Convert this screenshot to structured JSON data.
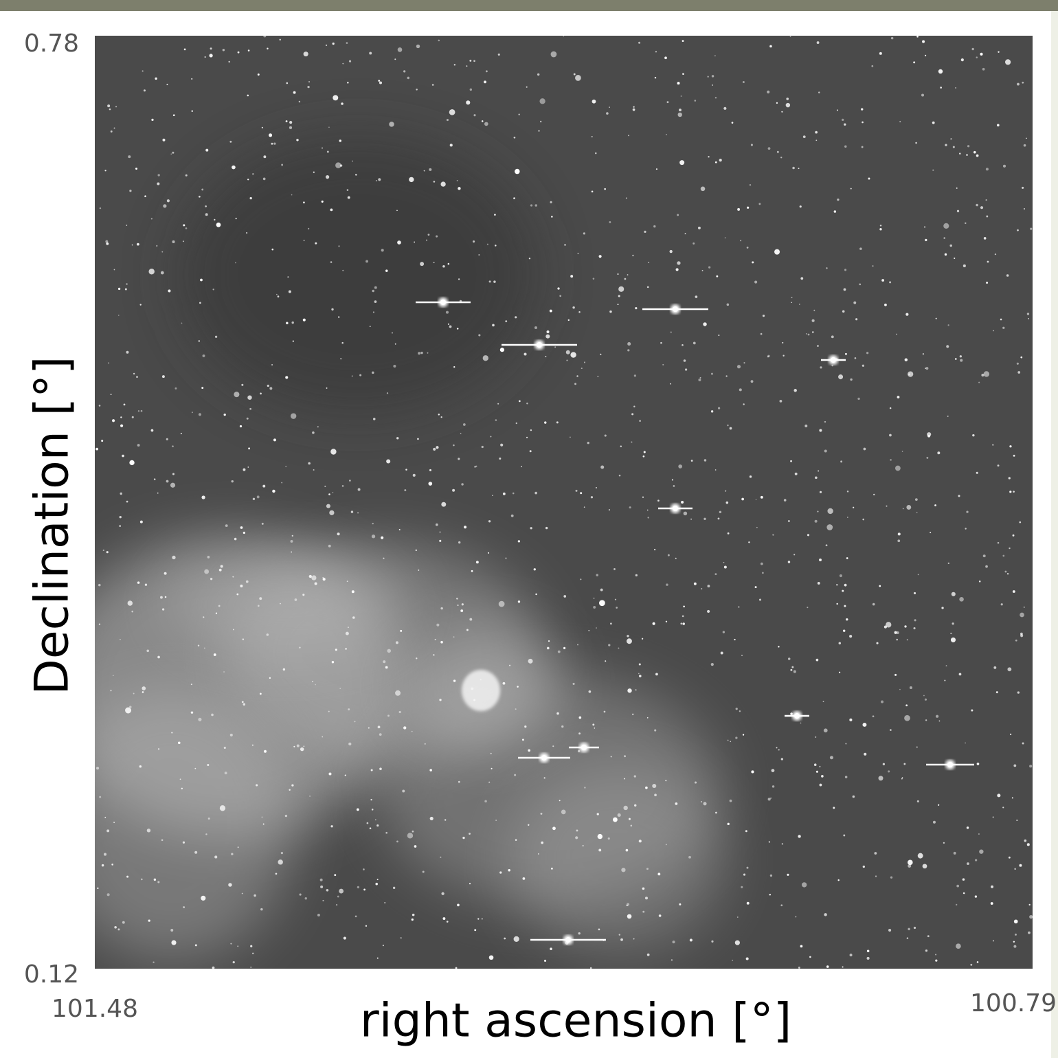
{
  "chart_data": {
    "type": "image",
    "x_label": "right ascension [°]",
    "y_label": "Declination [°]",
    "xlim": [
      101.48,
      100.79
    ],
    "xticks": [
      101.48,
      100.79
    ],
    "ylim": [
      0.12,
      0.78
    ],
    "yticks": [
      0.12,
      0.78
    ]
  }
}
